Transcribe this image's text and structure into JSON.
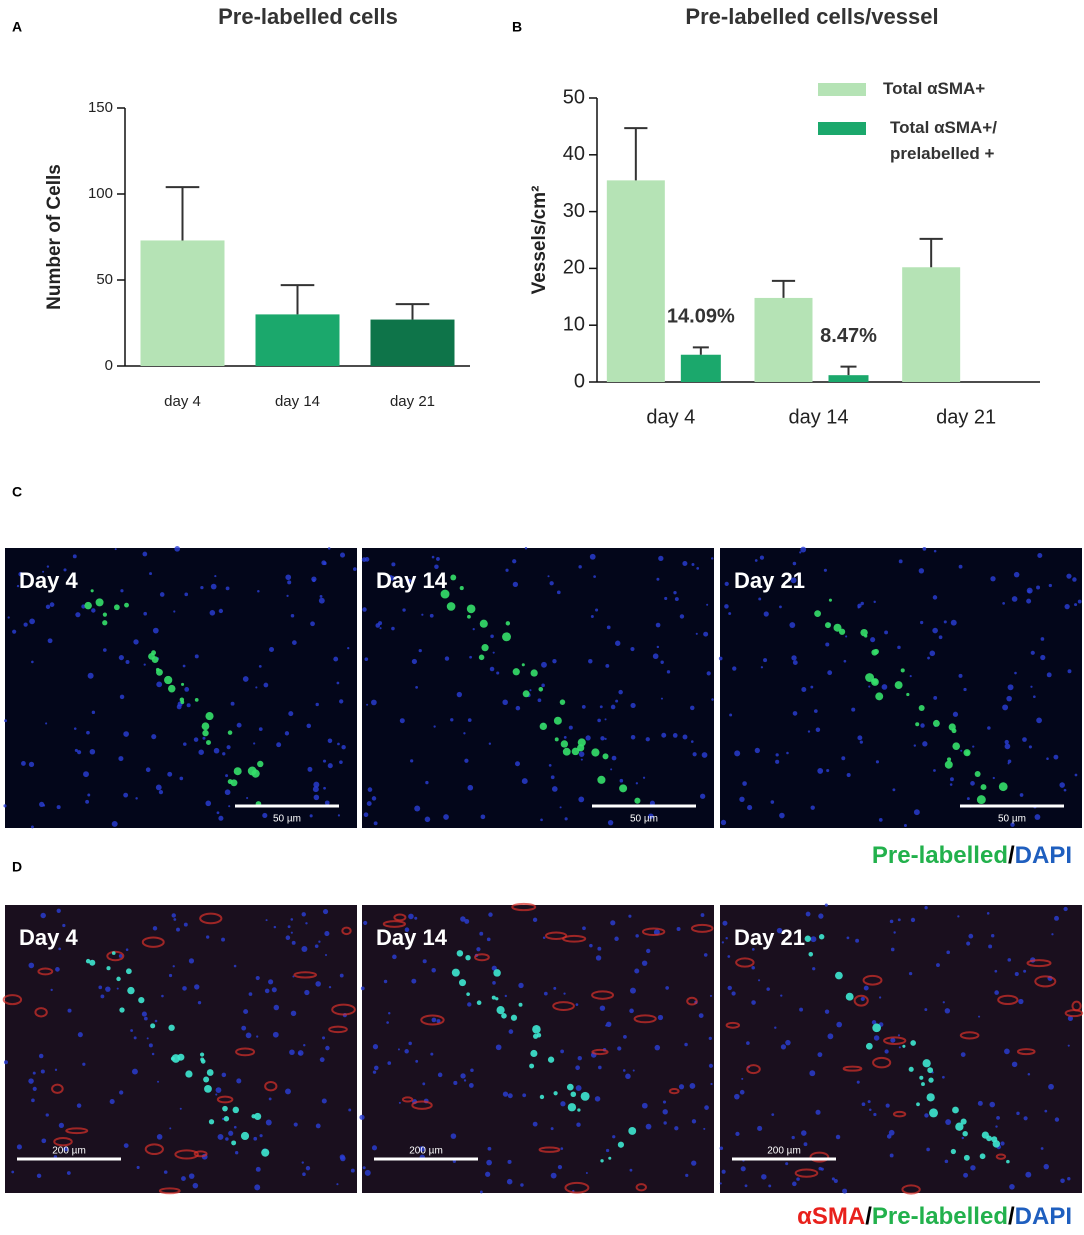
{
  "panel_labels": [
    "A",
    "B",
    "C",
    "D"
  ],
  "chart_data": [
    {
      "type": "bar",
      "title": "Pre-labelled cells",
      "ylabel": "Number of Cells",
      "categories": [
        "day 4",
        "day 14",
        "day 21"
      ],
      "values": [
        73,
        30,
        27
      ],
      "errors": [
        31,
        17,
        9
      ],
      "colors": [
        "#b5e3b5",
        "#1ba86c",
        "#0e7449"
      ],
      "ylim": [
        0,
        150
      ],
      "yticks": [
        0,
        50,
        100,
        150
      ]
    },
    {
      "type": "bar",
      "title": "Pre-labelled cells/vessel",
      "ylabel": "Vessels/cm²",
      "categories": [
        "day 4",
        "day 14",
        "day 21"
      ],
      "series": [
        {
          "name": "Total αSMA+",
          "color": "#b5e3b5",
          "values": [
            35.5,
            14.8,
            20.2
          ],
          "errors": [
            9.2,
            3,
            5
          ]
        },
        {
          "name": "Total αSMA+/ prelabelled +",
          "color": "#1ba86c",
          "values": [
            4.8,
            1.2,
            null
          ],
          "errors": [
            1.3,
            1.5,
            null
          ]
        }
      ],
      "annotations": [
        "14.09%",
        "8.47%"
      ],
      "ylim": [
        0,
        50
      ],
      "yticks": [
        0,
        10,
        20,
        30,
        40,
        50
      ],
      "legend": "upper right"
    }
  ],
  "panel_c": {
    "images": [
      {
        "label": "Day 4",
        "scale": "50 µm"
      },
      {
        "label": "Day 14",
        "scale": "50 µm"
      },
      {
        "label": "Day 21",
        "scale": "50 µm"
      }
    ],
    "caption": [
      {
        "text": "Pre-labelled",
        "color": "#22b14c"
      },
      {
        "text": "/",
        "color": "#000000"
      },
      {
        "text": "DAPI",
        "color": "#1f5fbf"
      }
    ]
  },
  "panel_d": {
    "images": [
      {
        "label": "Day 4",
        "scale": "200 µm"
      },
      {
        "label": "Day 14",
        "scale": "200 µm"
      },
      {
        "label": "Day 21",
        "scale": "200 µm"
      }
    ],
    "caption": [
      {
        "text": "αSMA",
        "color": "#e8211c"
      },
      {
        "text": "/",
        "color": "#000000"
      },
      {
        "text": "Pre-labelled",
        "color": "#22b14c"
      },
      {
        "text": "/",
        "color": "#000000"
      },
      {
        "text": "DAPI",
        "color": "#1f5fbf"
      }
    ]
  }
}
